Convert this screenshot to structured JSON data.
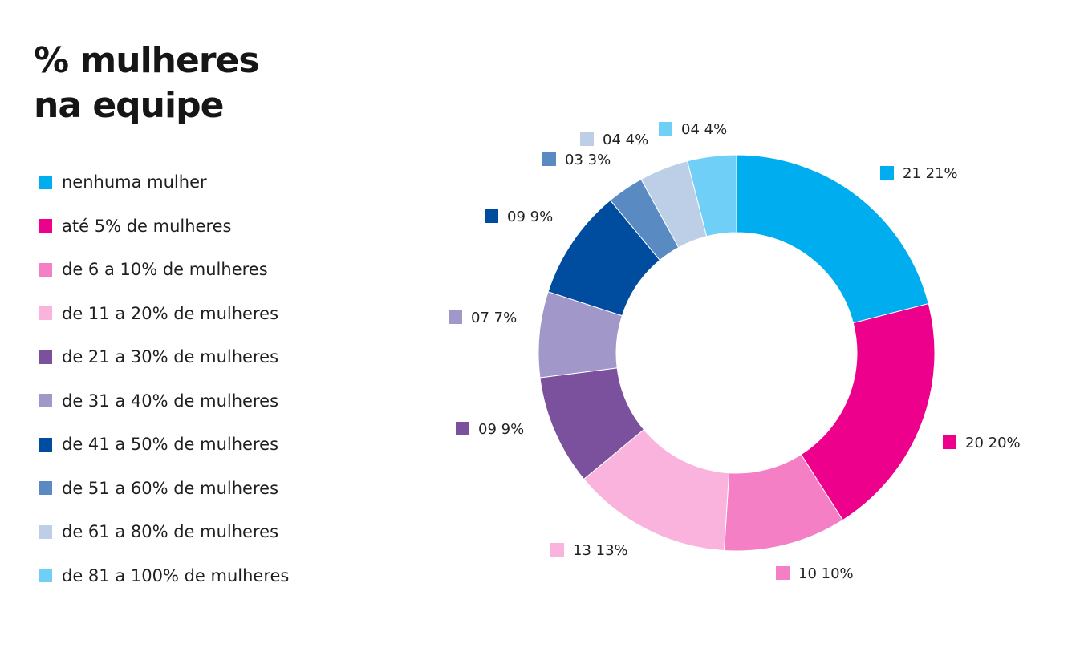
{
  "title_lines": [
    "% mulheres",
    "na equipe"
  ],
  "chart_data": {
    "type": "pie",
    "donut": true,
    "title": "% mulheres na equipe",
    "slices": [
      {
        "label": "nenhuma mulher",
        "value": 21,
        "percent": 21,
        "count_text": "21",
        "percent_text": "21%",
        "color": "#00AEEF"
      },
      {
        "label": "até 5% de mulheres",
        "value": 20,
        "percent": 20,
        "count_text": "20",
        "percent_text": "20%",
        "color": "#EC008C"
      },
      {
        "label": "de 6 a 10% de mulheres",
        "value": 10,
        "percent": 10,
        "count_text": "10",
        "percent_text": "10%",
        "color": "#F47FC4"
      },
      {
        "label": "de 11 a 20% de mulheres",
        "value": 13,
        "percent": 13,
        "count_text": "13",
        "percent_text": "13%",
        "color": "#F9B3DC"
      },
      {
        "label": "de 21 a 30% de mulheres",
        "value": 9,
        "percent": 9,
        "count_text": "09",
        "percent_text": "9%",
        "color": "#7B519D"
      },
      {
        "label": "de 31 a 40% de mulheres",
        "value": 7,
        "percent": 7,
        "count_text": "07",
        "percent_text": "7%",
        "color": "#A197C9"
      },
      {
        "label": "de 41 a 50% de mulheres",
        "value": 9,
        "percent": 9,
        "count_text": "09",
        "percent_text": "9%",
        "color": "#004C9F"
      },
      {
        "label": "de 51 a 60% de mulheres",
        "value": 3,
        "percent": 3,
        "count_text": "03",
        "percent_text": "3%",
        "color": "#5A8AC2"
      },
      {
        "label": "de 61 a 80% de mulheres",
        "value": 4,
        "percent": 4,
        "count_text": "04",
        "percent_text": "4%",
        "color": "#BCCFE7"
      },
      {
        "label": "de 81 a 100% de mulheres",
        "value": 4,
        "percent": 4,
        "count_text": "04",
        "percent_text": "4%",
        "color": "#6FCFF6"
      }
    ],
    "legend_position": "left"
  }
}
